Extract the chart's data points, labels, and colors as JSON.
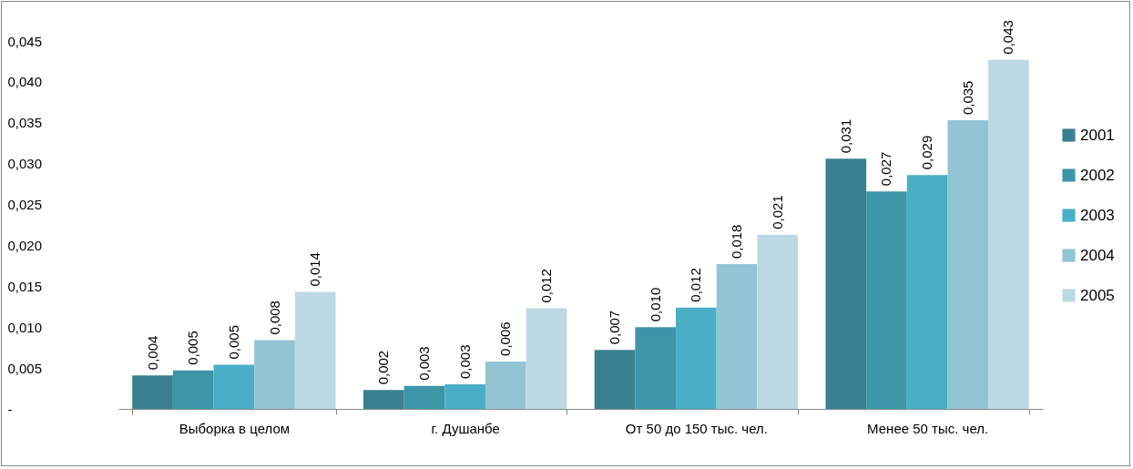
{
  "chart_data": {
    "type": "bar",
    "categories": [
      "Выборка в целом",
      "г. Душанбе",
      "От 50 до 150 тыс. чел.",
      "Менее 50 тыс. чел."
    ],
    "series": [
      {
        "name": "2001",
        "color": "#3a7f8f",
        "values": [
          0.0041,
          0.0023,
          0.0072,
          0.0306
        ],
        "value_labels": [
          "0,004",
          "0,002",
          "0,007",
          "0,031"
        ]
      },
      {
        "name": "2002",
        "color": "#3d95a8",
        "values": [
          0.0047,
          0.0028,
          0.01,
          0.0266
        ],
        "value_labels": [
          "0,005",
          "0,003",
          "0,010",
          "0,027"
        ]
      },
      {
        "name": "2003",
        "color": "#4aaec6",
        "values": [
          0.0054,
          0.003,
          0.0124,
          0.0286
        ],
        "value_labels": [
          "0,005",
          "0,003",
          "0,012",
          "0,029"
        ]
      },
      {
        "name": "2004",
        "color": "#93c4d4",
        "values": [
          0.0084,
          0.0058,
          0.0177,
          0.0353
        ],
        "value_labels": [
          "0,008",
          "0,006",
          "0,018",
          "0,035"
        ]
      },
      {
        "name": "2005",
        "color": "#bcd9e3",
        "values": [
          0.0143,
          0.0123,
          0.0213,
          0.0427
        ],
        "value_labels": [
          "0,014",
          "0,012",
          "0,021",
          "0,043"
        ]
      }
    ],
    "ylim": [
      0,
      0.045
    ],
    "yticks": [
      {
        "value": 0,
        "label": "-"
      },
      {
        "value": 0.005,
        "label": "0,005"
      },
      {
        "value": 0.01,
        "label": "0,010"
      },
      {
        "value": 0.015,
        "label": "0,015"
      },
      {
        "value": 0.02,
        "label": "0,020"
      },
      {
        "value": 0.025,
        "label": "0,025"
      },
      {
        "value": 0.03,
        "label": "0,030"
      },
      {
        "value": 0.035,
        "label": "0,035"
      },
      {
        "value": 0.04,
        "label": "0,040"
      },
      {
        "value": 0.045,
        "label": "0,045"
      }
    ],
    "grid": false,
    "legend": "right"
  }
}
